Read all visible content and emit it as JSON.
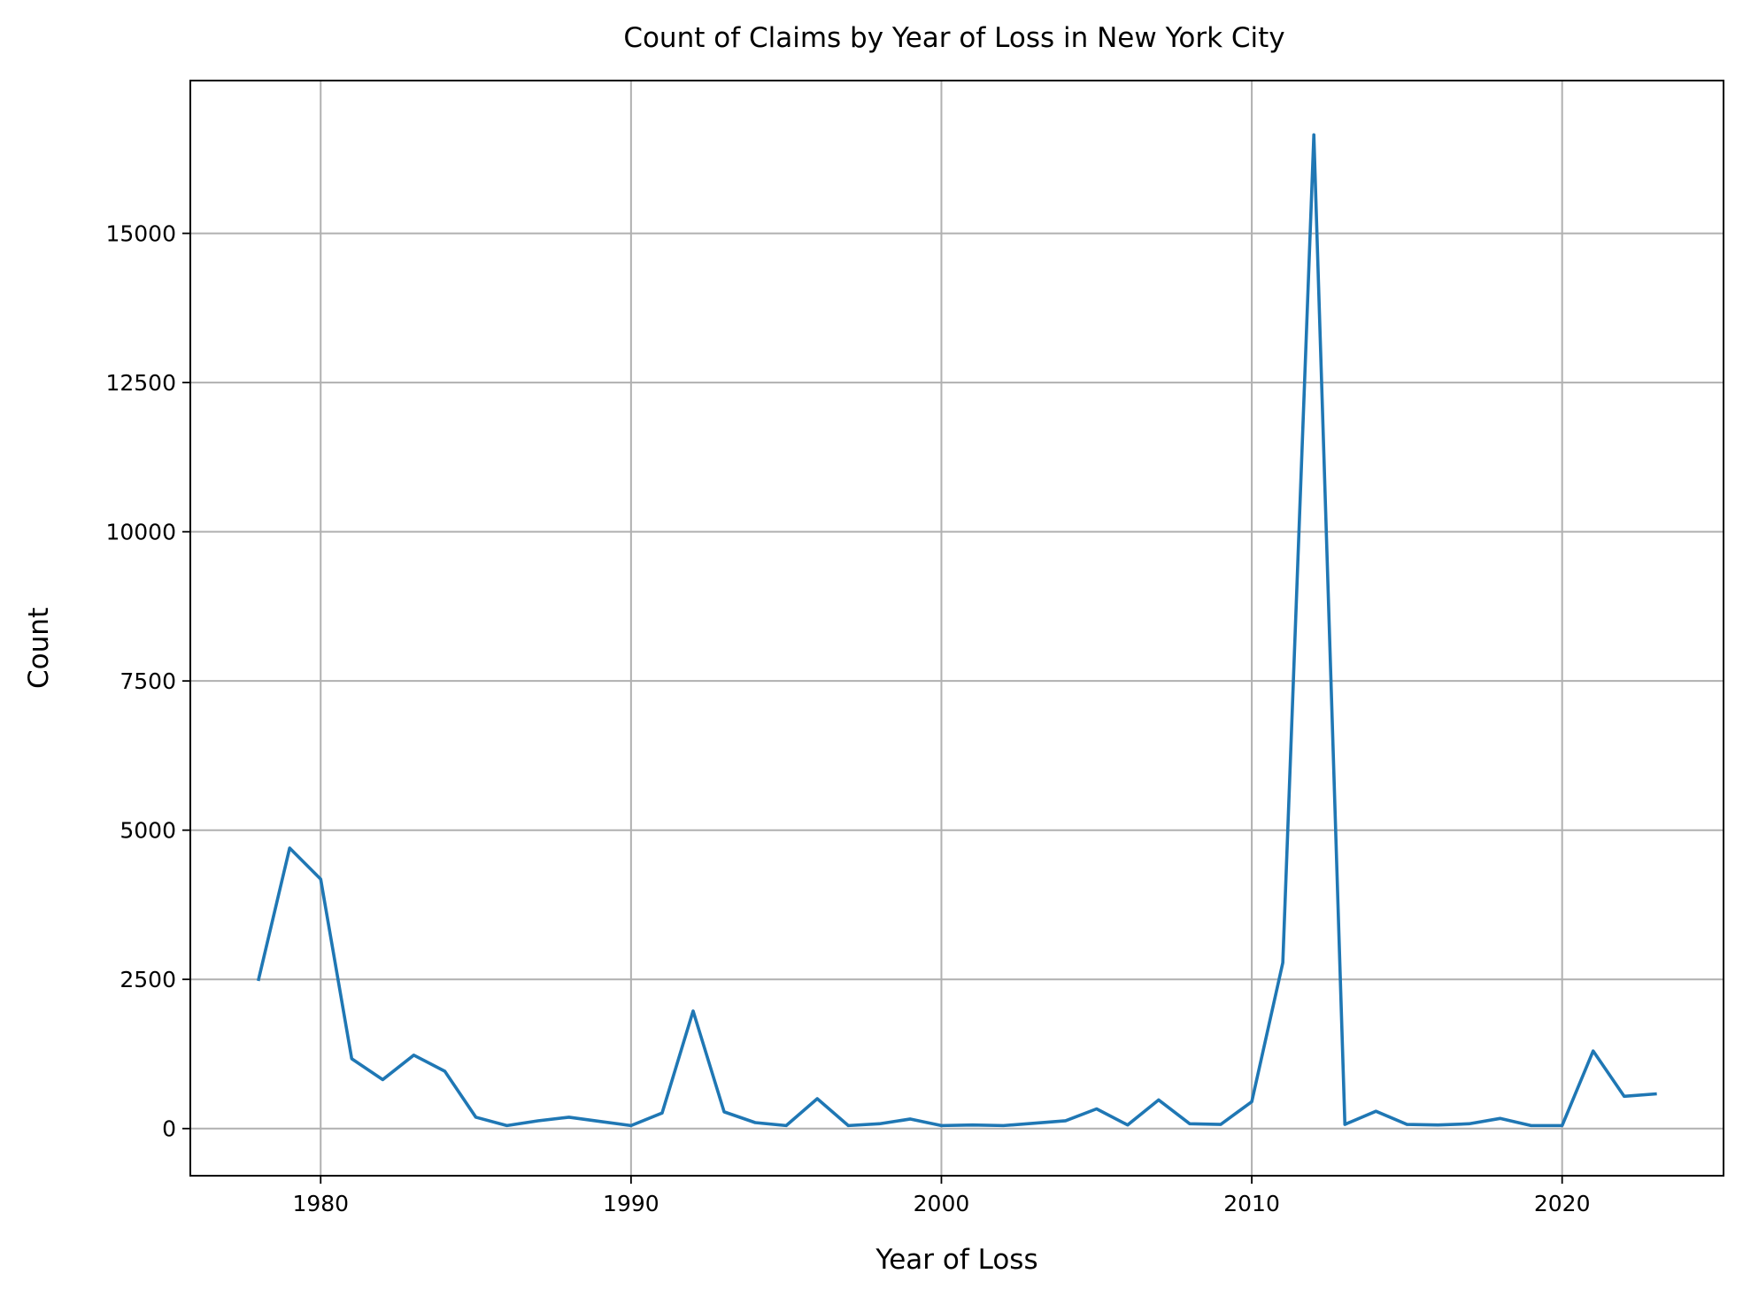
{
  "chart_data": {
    "type": "line",
    "title": "Count of Claims by Year of Loss in New York City",
    "xlabel": "Year of Loss",
    "ylabel": "Count",
    "xlim": [
      1975.8,
      2025.2
    ],
    "ylim": [
      -790,
      17560
    ],
    "xticks": [
      1980,
      1990,
      2000,
      2010,
      2020
    ],
    "yticks": [
      0,
      2500,
      5000,
      7500,
      10000,
      12500,
      15000
    ],
    "grid": true,
    "line_color": "#1f77b4",
    "series": [
      {
        "x": [
          1978,
          1979,
          1980,
          1981,
          1982,
          1983,
          1984,
          1985,
          1986,
          1987,
          1988,
          1989,
          1990,
          1991,
          1992,
          1993,
          1994,
          1995,
          1996,
          1997,
          1998,
          1999,
          2000,
          2001,
          2002,
          2003,
          2004,
          2005,
          2006,
          2007,
          2008,
          2009,
          2010,
          2011,
          2012,
          2013,
          2014,
          2015,
          2016,
          2017,
          2018,
          2019,
          2020,
          2021,
          2022,
          2023
        ],
        "values": [
          2500,
          4700,
          4180,
          1170,
          820,
          1230,
          960,
          190,
          50,
          130,
          190,
          120,
          50,
          260,
          1970,
          280,
          100,
          50,
          500,
          50,
          80,
          160,
          50,
          60,
          50,
          90,
          130,
          330,
          60,
          480,
          80,
          70,
          450,
          2780,
          16650,
          70,
          290,
          70,
          60,
          80,
          170,
          50,
          50,
          1300,
          540,
          580
        ]
      }
    ]
  }
}
